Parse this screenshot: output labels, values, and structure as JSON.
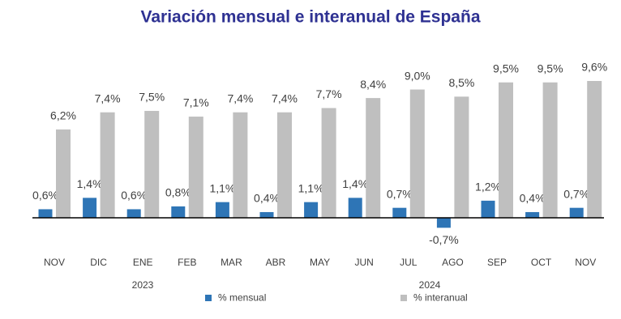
{
  "chart_data": {
    "type": "bar",
    "title": "Variación mensual e interanual de España",
    "categories": [
      "NOV",
      "DIC",
      "ENE",
      "FEB",
      "MAR",
      "ABR",
      "MAY",
      "JUN",
      "JUL",
      "AGO",
      "SEP",
      "OCT",
      "NOV"
    ],
    "year_labels": [
      "2023",
      "2024"
    ],
    "series": [
      {
        "name": "% mensual",
        "color": "#2e75b6",
        "values": [
          0.6,
          1.4,
          0.6,
          0.8,
          1.1,
          0.4,
          1.1,
          1.4,
          0.7,
          -0.7,
          1.2,
          0.4,
          0.7
        ],
        "value_labels": [
          "0,6%",
          "1,4%",
          "0,6%",
          "0,8%",
          "1,1%",
          "0,4%",
          "1,1%",
          "1,4%",
          "0,7%",
          "-0,7%",
          "1,2%",
          "0,4%",
          "0,7%"
        ]
      },
      {
        "name": "% interanual",
        "color": "#bfbfbf",
        "values": [
          6.2,
          7.4,
          7.5,
          7.1,
          7.4,
          7.4,
          7.7,
          8.4,
          9.0,
          8.5,
          9.5,
          9.5,
          9.6
        ],
        "value_labels": [
          "6,2%",
          "7,4%",
          "7,5%",
          "7,1%",
          "7,4%",
          "7,4%",
          "7,7%",
          "8,4%",
          "9,0%",
          "8,5%",
          "9,5%",
          "9,5%",
          "9,6%"
        ]
      }
    ]
  }
}
